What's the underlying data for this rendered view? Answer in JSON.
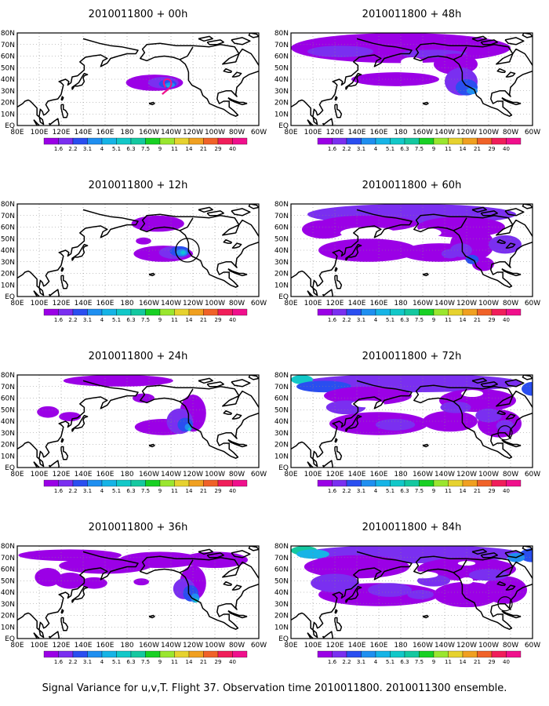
{
  "figure": {
    "caption": "Signal Variance for u,v,T. Flight 37. Observation time 2010011800. 2010011300 ensemble."
  },
  "colorbar": {
    "labels": [
      "1.6",
      "2.2",
      "3.1",
      "4",
      "5.1",
      "6.3",
      "7.5",
      "9",
      "11",
      "14",
      "21",
      "29",
      "40"
    ],
    "colors": [
      "#9b00e6",
      "#7a2ff0",
      "#2a4ef0",
      "#1f8ff0",
      "#16b4e6",
      "#12c8c8",
      "#14c8a0",
      "#18d024",
      "#9ae62f",
      "#e6d22f",
      "#f0a020",
      "#f06228",
      "#f01e5a",
      "#f0108c"
    ]
  },
  "map": {
    "x_ticks": [
      "80E",
      "100E",
      "120E",
      "140E",
      "160E",
      "180",
      "160W",
      "140W",
      "120W",
      "100W",
      "80W",
      "60W"
    ],
    "y_ticks": [
      "EQ",
      "10N",
      "20N",
      "30N",
      "40N",
      "50N",
      "60N",
      "70N",
      "80N"
    ]
  },
  "chart_data": [
    {
      "type": "heatmap",
      "title": "2010011800 + 00h",
      "init_time": "2010011800",
      "lead_hours": 0,
      "colorbar_range": [
        1.6,
        40
      ],
      "max_level_index": 4,
      "markers": "magenta flight track near 140W, 35N"
    },
    {
      "type": "heatmap",
      "title": "2010011800 + 12h",
      "init_time": "2010011800",
      "lead_hours": 12,
      "colorbar_range": [
        1.6,
        40
      ],
      "max_level_index": 5,
      "markers": "black circle near 125W, 40N"
    },
    {
      "type": "heatmap",
      "title": "2010011800 + 24h",
      "init_time": "2010011800",
      "lead_hours": 24,
      "colorbar_range": [
        1.6,
        40
      ],
      "max_level_index": 5
    },
    {
      "type": "heatmap",
      "title": "2010011800 + 36h",
      "init_time": "2010011800",
      "lead_hours": 36,
      "colorbar_range": [
        1.6,
        40
      ],
      "max_level_index": 5
    },
    {
      "type": "heatmap",
      "title": "2010011800 + 48h",
      "init_time": "2010011800",
      "lead_hours": 48,
      "colorbar_range": [
        1.6,
        40
      ],
      "max_level_index": 4
    },
    {
      "type": "heatmap",
      "title": "2010011800 + 60h",
      "init_time": "2010011800",
      "lead_hours": 60,
      "colorbar_range": [
        1.6,
        40
      ],
      "max_level_index": 4
    },
    {
      "type": "heatmap",
      "title": "2010011800 + 72h",
      "init_time": "2010011800",
      "lead_hours": 72,
      "colorbar_range": [
        1.6,
        40
      ],
      "max_level_index": 5
    },
    {
      "type": "heatmap",
      "title": "2010011800 + 84h",
      "init_time": "2010011800",
      "lead_hours": 84,
      "colorbar_range": [
        1.6,
        40
      ],
      "max_level_index": 6
    }
  ]
}
